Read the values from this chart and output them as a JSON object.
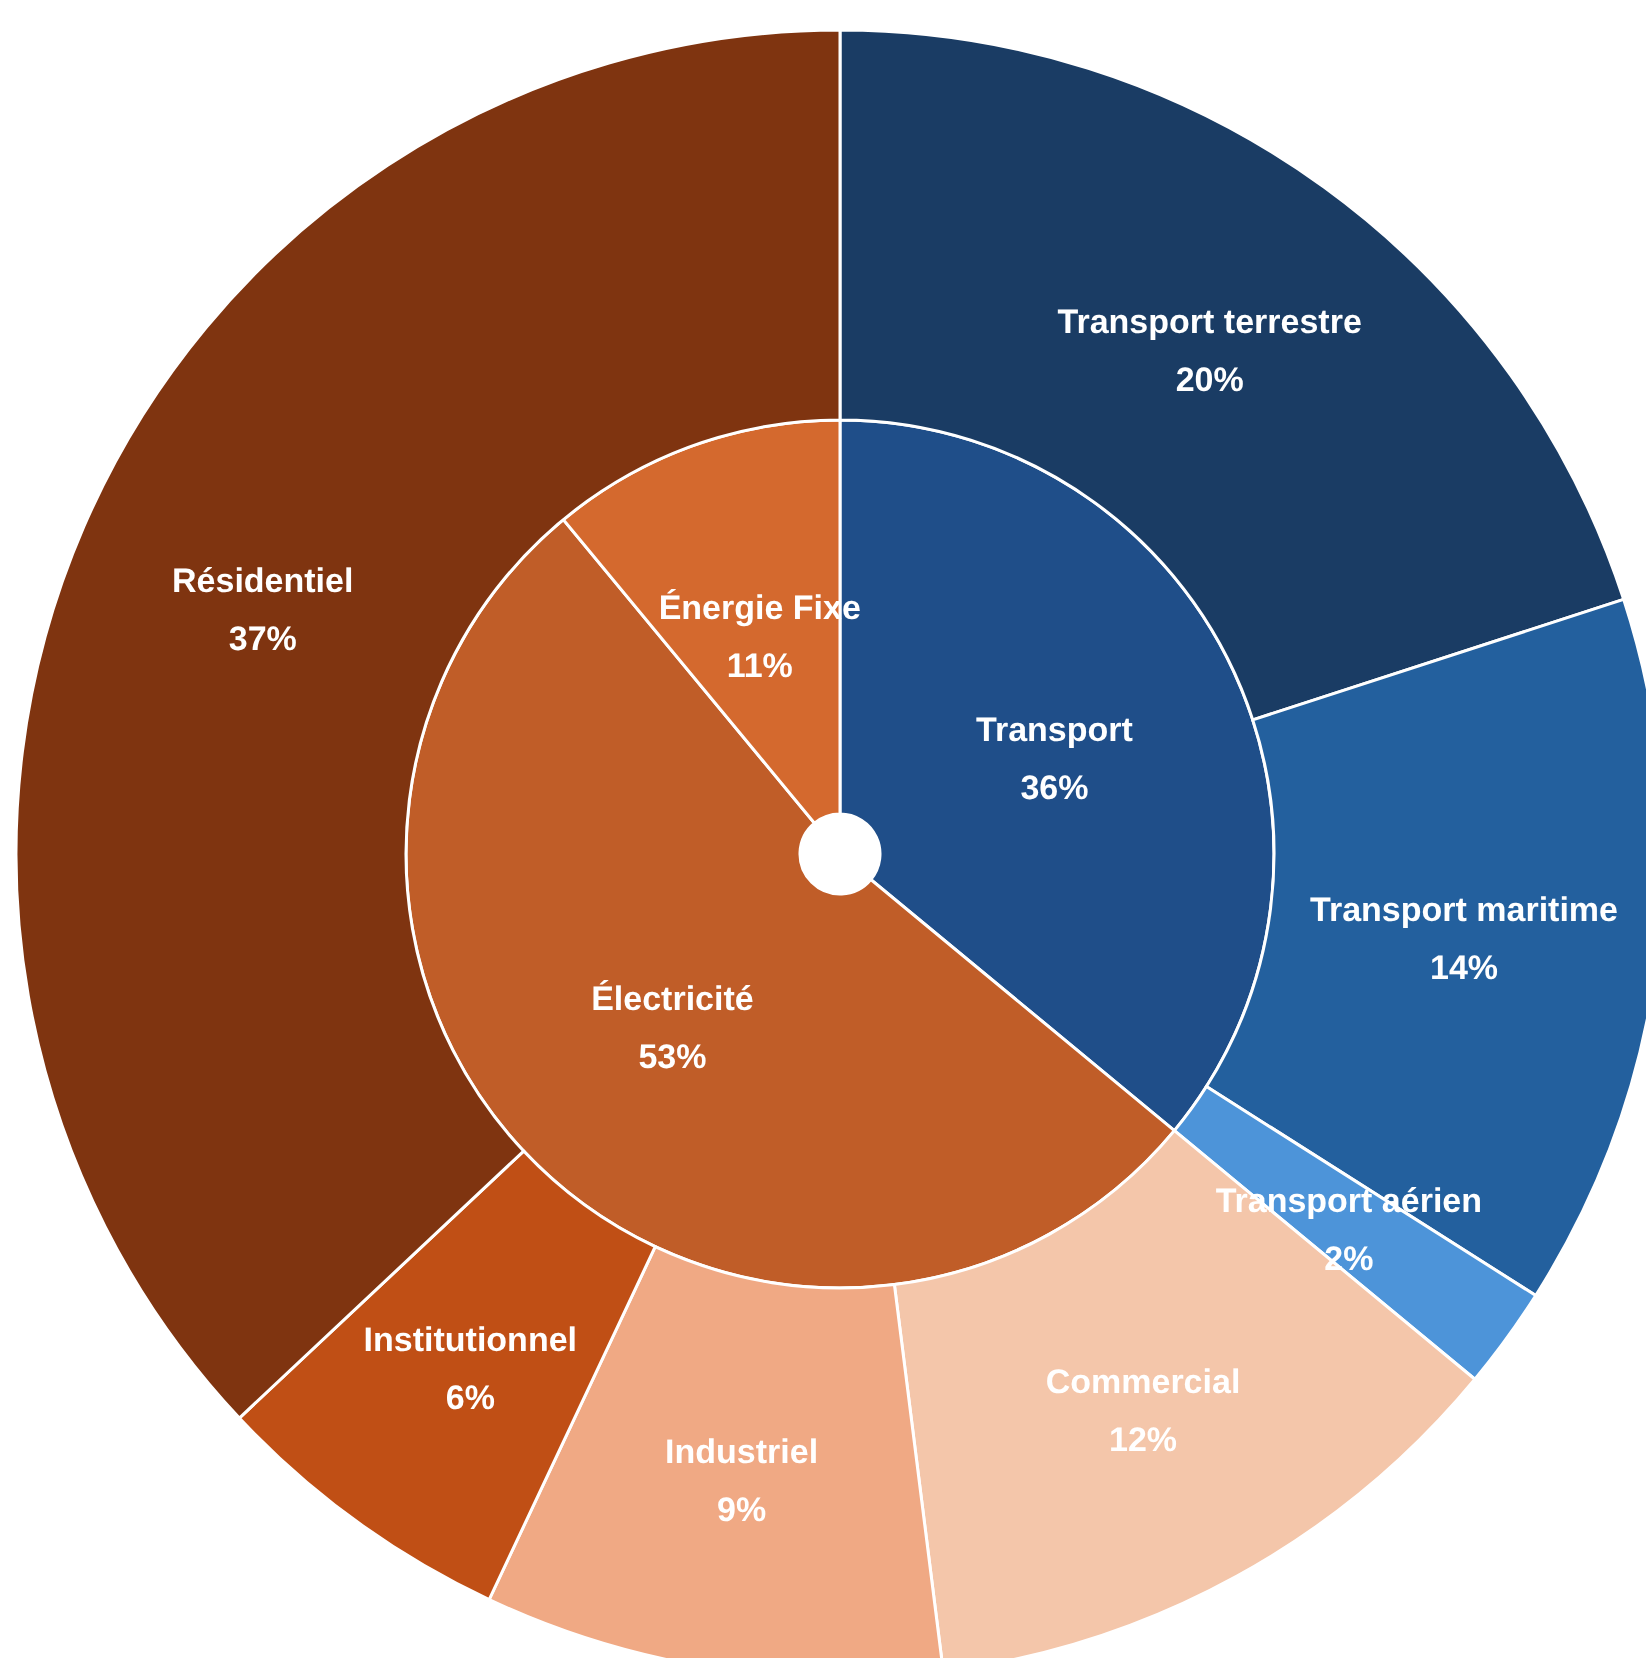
{
  "chart_data": [
    {
      "type": "pie",
      "categories": [
        "Transport",
        "Électricité",
        "Énergie Fixe"
      ],
      "values": [
        36,
        53,
        11
      ],
      "colors": [
        "#1f4e89",
        "#c05d28",
        "#d4692e"
      ],
      "value_labels": [
        "36%",
        "53%",
        "11%"
      ]
    },
    {
      "type": "donut",
      "categories": [
        "Transport terrestre",
        "Transport maritime",
        "Transport aérien",
        "Commercial",
        "Industriel",
        "Institutionnel",
        "Résidentiel"
      ],
      "values": [
        20,
        14,
        2,
        12,
        9,
        6,
        37
      ],
      "colors": [
        "#1a3c64",
        "#23609e",
        "#4d94d9",
        "#f4c6aa",
        "#f0a984",
        "#c04f15",
        "#7f3410"
      ],
      "value_labels": [
        "20%",
        "14%",
        "2%",
        "12%",
        "9%",
        "6%",
        "37%"
      ]
    }
  ]
}
